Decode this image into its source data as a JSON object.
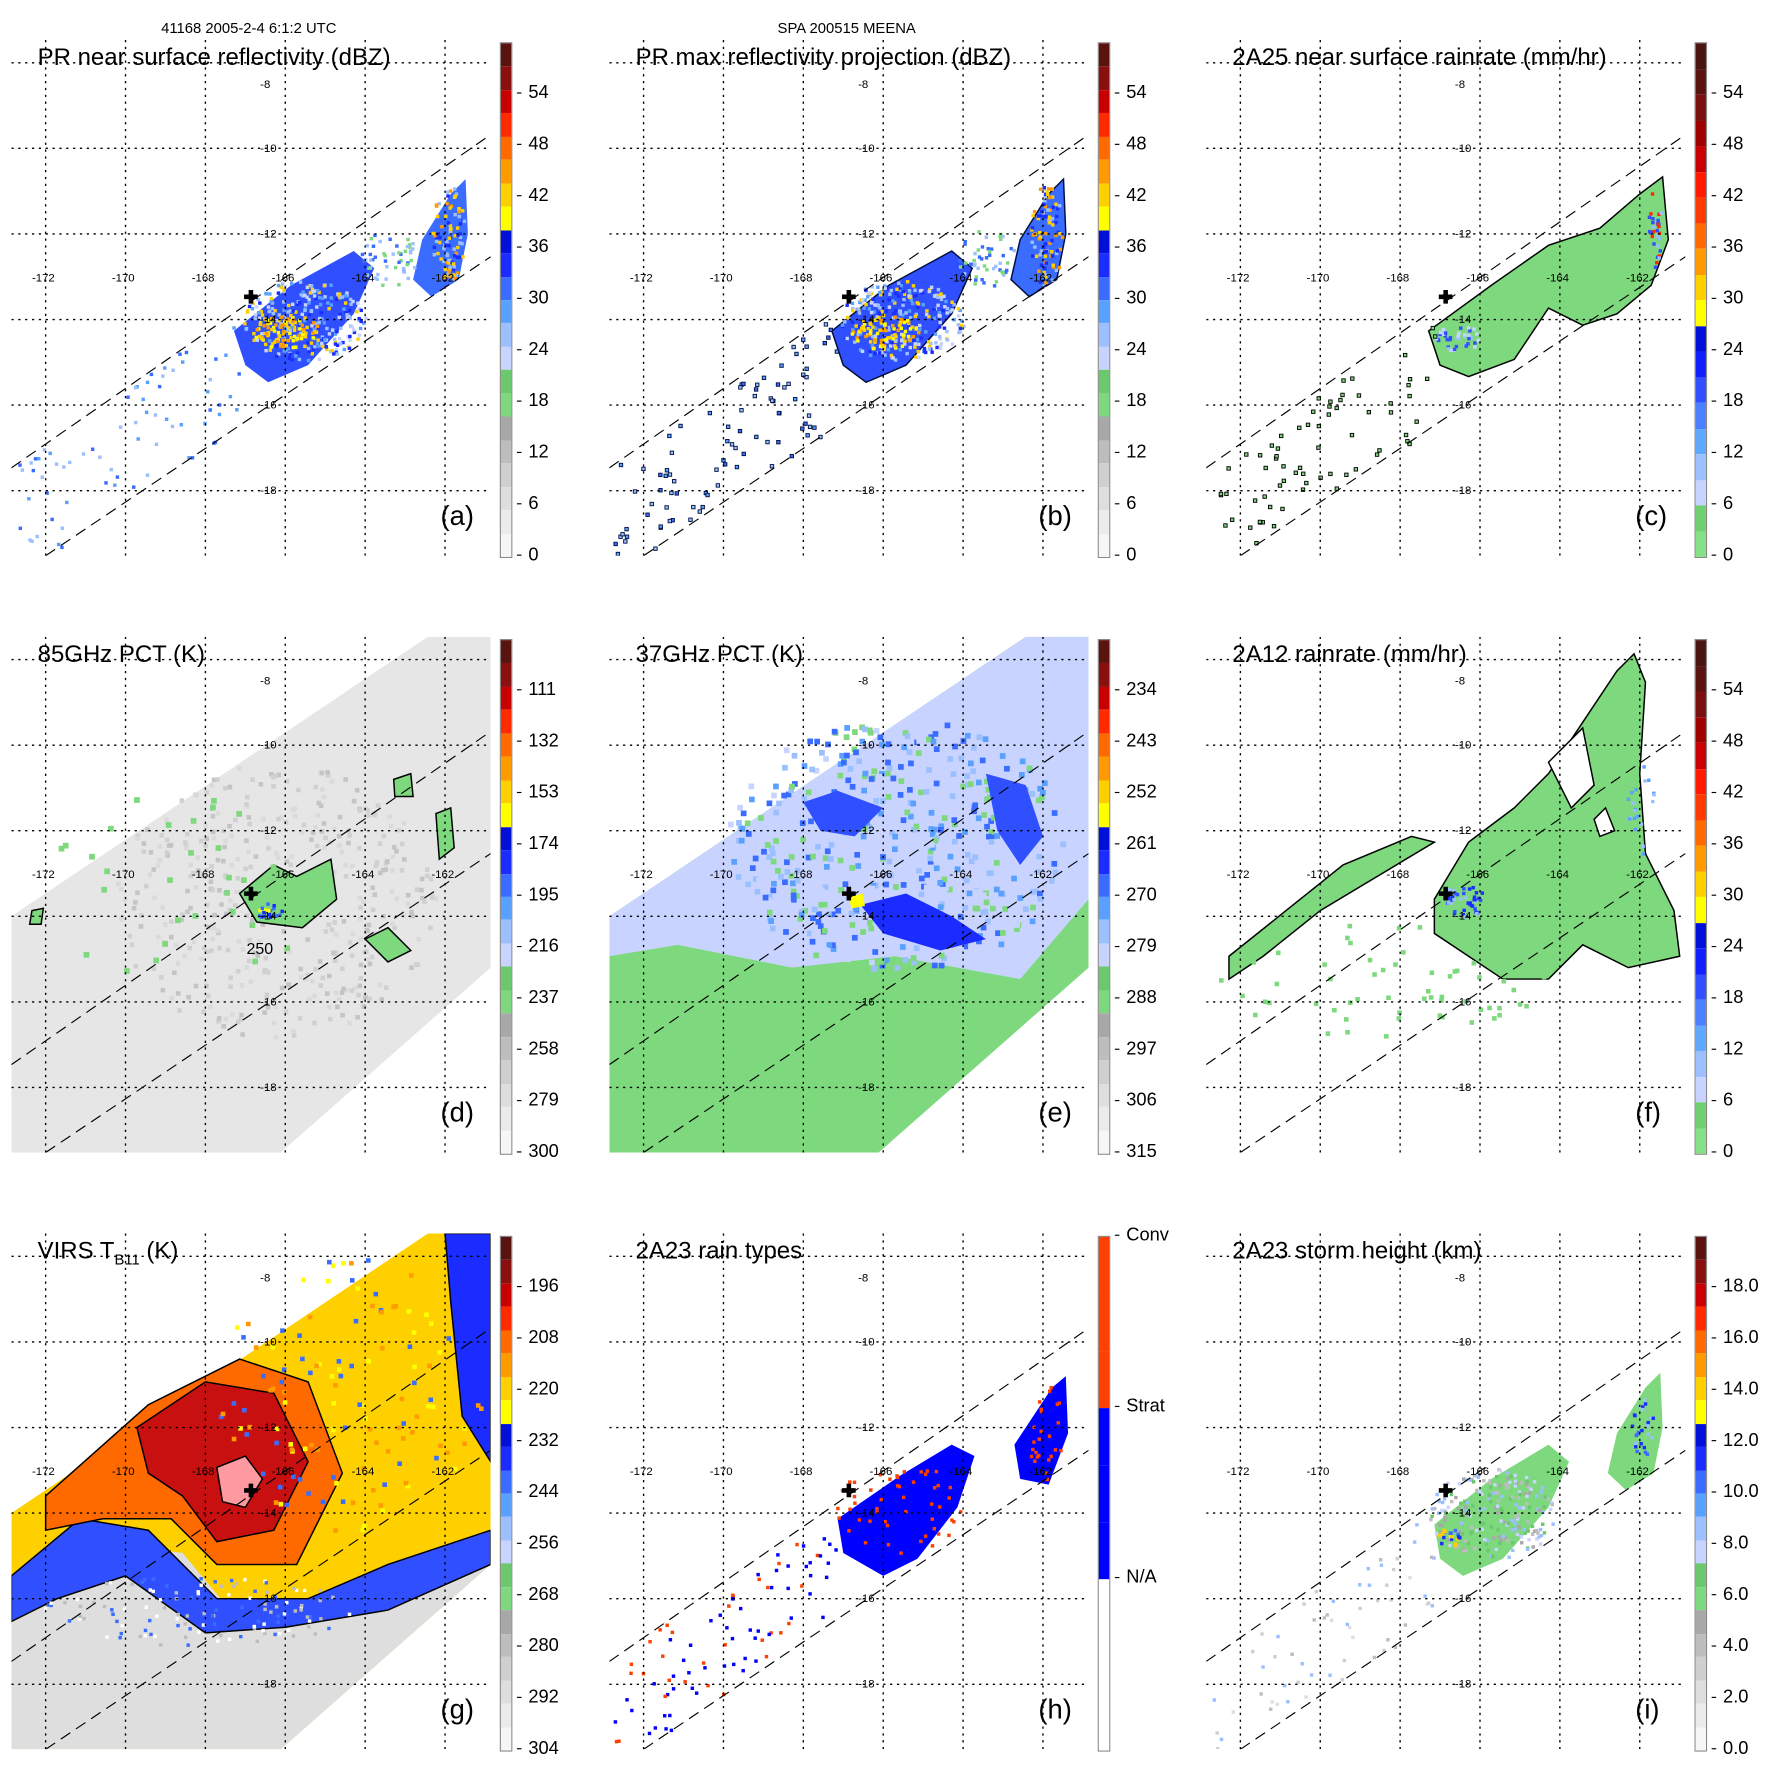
{
  "header": {
    "left": "41168 2005-2-4 6:1:2 UTC",
    "center": "SPA 200515 MEENA"
  },
  "map": {
    "lon_labels": [
      "-172",
      "-170",
      "-168",
      "-166",
      "-164",
      "-162"
    ],
    "lat_labels": [
      "-8",
      "-10",
      "-12",
      "-14",
      "-16",
      "-18"
    ],
    "contour_label": "250"
  },
  "palettes": {
    "standard": [
      "#f6f6f6",
      "#ebebeb",
      "#dedede",
      "#cfcfcf",
      "#bdbdbd",
      "#a8a8a8",
      "#7ed87e",
      "#6cc86c",
      "#c8d4ff",
      "#9cc0ff",
      "#5aa0ff",
      "#3a6cff",
      "#1a2cff",
      "#0010d8",
      "#ffff00",
      "#ffd000",
      "#ff9a00",
      "#ff6a00",
      "#ff2a00",
      "#c80000",
      "#8a1010",
      "#5a1410"
    ],
    "rain": [
      "#86e086",
      "#70d070",
      "#c8d4ff",
      "#9cc0ff",
      "#60a8ff",
      "#4a80ff",
      "#3050ff",
      "#1020ff",
      "#0010d8",
      "#ffff00",
      "#ffd000",
      "#ff9a00",
      "#ff6a00",
      "#ff3a00",
      "#ff1a00",
      "#c80000",
      "#a00000",
      "#7a1010",
      "#5a1410",
      "#4a1410"
    ],
    "types": [
      "#ffffff",
      "#ffffff",
      "#ffffff",
      "#0000ff",
      "#0000ff",
      "#0000ff",
      "#ff4000",
      "#ff4000",
      "#ff4000"
    ]
  },
  "panels": [
    {
      "title": "PR near surface reflectivity (dBZ)",
      "label": "(a)",
      "palette": "standard",
      "ticks": [
        "0",
        "6",
        "12",
        "18",
        "24",
        "30",
        "36",
        "42",
        "48",
        "54"
      ],
      "tick_fracs": [
        0,
        0.1,
        0.2,
        0.3,
        0.4,
        0.5,
        0.6,
        0.7,
        0.8,
        0.9
      ]
    },
    {
      "title": "PR max reflectivity projection (dBZ)",
      "label": "(b)",
      "palette": "standard",
      "ticks": [
        "0",
        "6",
        "12",
        "18",
        "24",
        "30",
        "36",
        "42",
        "48",
        "54"
      ],
      "tick_fracs": [
        0,
        0.1,
        0.2,
        0.3,
        0.4,
        0.5,
        0.6,
        0.7,
        0.8,
        0.9
      ]
    },
    {
      "title": "2A25 near surface rainrate (mm/hr)",
      "label": "(c)",
      "palette": "rain",
      "ticks": [
        "0",
        "6",
        "12",
        "18",
        "24",
        "30",
        "36",
        "42",
        "48",
        "54"
      ],
      "tick_fracs": [
        0,
        0.1,
        0.2,
        0.3,
        0.4,
        0.5,
        0.6,
        0.7,
        0.8,
        0.9
      ]
    },
    {
      "title": "85GHz PCT (K)",
      "label": "(d)",
      "palette": "standard",
      "ticks": [
        "300",
        "279",
        "258",
        "237",
        "216",
        "195",
        "174",
        "153",
        "132",
        "111"
      ],
      "tick_fracs": [
        0,
        0.1,
        0.2,
        0.3,
        0.4,
        0.5,
        0.6,
        0.7,
        0.8,
        0.9
      ]
    },
    {
      "title": "37GHz PCT (K)",
      "label": "(e)",
      "palette": "standard",
      "ticks": [
        "315",
        "306",
        "297",
        "288",
        "279",
        "270",
        "261",
        "252",
        "243",
        "234"
      ],
      "tick_fracs": [
        0,
        0.1,
        0.2,
        0.3,
        0.4,
        0.5,
        0.6,
        0.7,
        0.8,
        0.9
      ]
    },
    {
      "title": "2A12 rainrate (mm/hr)",
      "label": "(f)",
      "palette": "rain",
      "ticks": [
        "0",
        "6",
        "12",
        "18",
        "24",
        "30",
        "36",
        "42",
        "48",
        "54"
      ],
      "tick_fracs": [
        0,
        0.1,
        0.2,
        0.3,
        0.4,
        0.5,
        0.6,
        0.7,
        0.8,
        0.9
      ]
    },
    {
      "title": "VIRS T",
      "title_sub": "B11",
      "title_suffix": " (K)",
      "label": "(g)",
      "palette": "standard",
      "ticks": [
        "304",
        "292",
        "280",
        "268",
        "256",
        "244",
        "232",
        "220",
        "208",
        "196"
      ],
      "tick_fracs": [
        0,
        0.1,
        0.2,
        0.3,
        0.4,
        0.5,
        0.6,
        0.7,
        0.8,
        0.9
      ]
    },
    {
      "title": "2A23 rain types",
      "label": "(h)",
      "palette": "types",
      "ticks": [
        "N/A",
        "Strat",
        "Conv"
      ],
      "tick_fracs": [
        0.333,
        0.667,
        1.0
      ]
    },
    {
      "title": "2A23 storm height (km)",
      "label": "(i)",
      "palette": "standard",
      "ticks": [
        "0.0",
        "2.0",
        "4.0",
        "6.0",
        "8.0",
        "10.0",
        "12.0",
        "14.0",
        "16.0",
        "18.0"
      ],
      "tick_fracs": [
        0,
        0.1,
        0.2,
        0.3,
        0.4,
        0.5,
        0.6,
        0.7,
        0.8,
        0.9
      ]
    }
  ]
}
